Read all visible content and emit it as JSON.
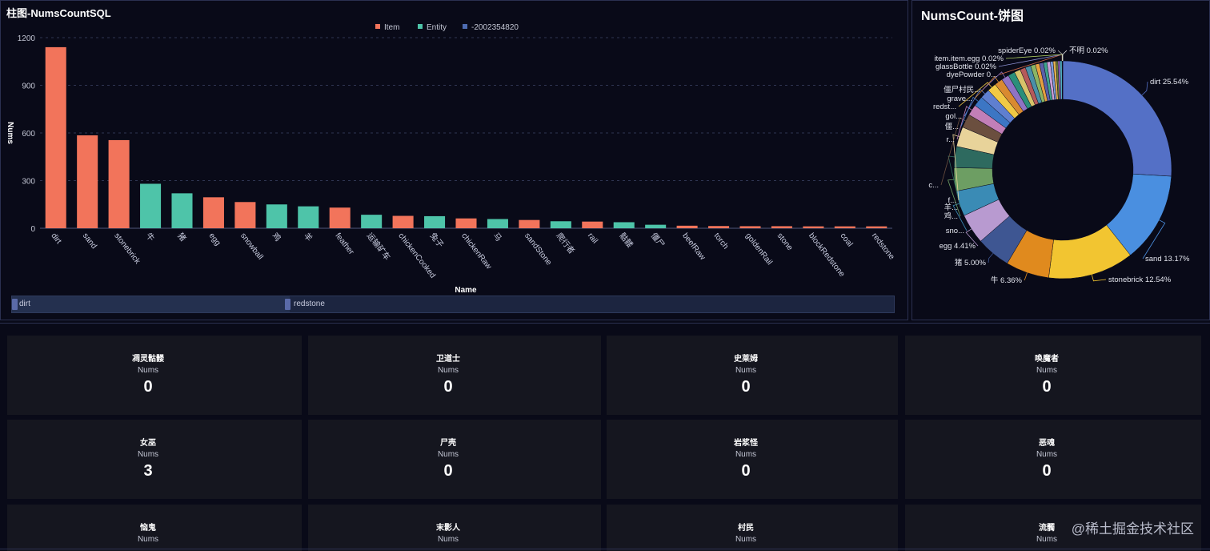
{
  "bar_panel": {
    "title": "柱图-NumsCountSQL"
  },
  "pie_panel": {
    "title": "NumsCount-饼图"
  },
  "colors": {
    "item": "#f2745b",
    "entity": "#4ec4a9",
    "other": "#4d6bb1"
  },
  "chart_data": [
    {
      "type": "bar",
      "title": "柱图-NumsCountSQL",
      "xlabel": "Name",
      "ylabel": "Nums",
      "ylim": [
        0,
        1200
      ],
      "yticks": [
        0,
        300,
        600,
        900,
        1200
      ],
      "grid": true,
      "legend": [
        "Item",
        "Entity",
        "-2002354820"
      ],
      "legend_placement": "top-center",
      "categories": [
        "dirt",
        "sand",
        "stonebrick",
        "牛",
        "猪",
        "egg",
        "snowball",
        "鸡",
        "羊",
        "feather",
        "运输矿车",
        "chickenCooked",
        "兔子",
        "chickenRaw",
        "马",
        "sandStone",
        "爬行者",
        "rail",
        "骷髅",
        "僵尸",
        "beefRaw",
        "torch",
        "goldenRail",
        "stone",
        "blockRedstone",
        "coal",
        "redstone"
      ],
      "series": [
        {
          "name": "Item",
          "values": [
            1140,
            585,
            555,
            null,
            null,
            195,
            165,
            null,
            null,
            130,
            null,
            78,
            null,
            62,
            null,
            52,
            null,
            42,
            null,
            null,
            16,
            14,
            13,
            13,
            12,
            12,
            12
          ]
        },
        {
          "name": "Entity",
          "values": [
            null,
            null,
            null,
            280,
            220,
            null,
            null,
            150,
            138,
            null,
            85,
            null,
            76,
            null,
            58,
            null,
            44,
            null,
            38,
            22,
            null,
            null,
            null,
            null,
            null,
            null,
            null
          ]
        }
      ]
    },
    {
      "type": "pie",
      "title": "NumsCount-饼图",
      "donut": true,
      "slices": [
        {
          "label": "dirt 25.54%",
          "value": 25.54,
          "color": "#5470c6"
        },
        {
          "label": "sand 13.17%",
          "value": 13.17,
          "color": "#4a8fe0"
        },
        {
          "label": "stonebrick 12.54%",
          "value": 12.54,
          "color": "#f2c531"
        },
        {
          "label": "牛 6.36%",
          "value": 6.36,
          "color": "#e08a1e"
        },
        {
          "label": "猪 5.00%",
          "value": 5.0,
          "color": "#3e5692"
        },
        {
          "label": "egg 4.41%",
          "value": 4.41,
          "color": "#b89ad0"
        },
        {
          "label": "sno...",
          "value": 3.7,
          "color": "#3a8bb5"
        },
        {
          "label": "鸡...",
          "value": 3.4,
          "color": "#6d9e63"
        },
        {
          "label": "羊...",
          "value": 3.1,
          "color": "#2e6a5f"
        },
        {
          "label": "f...",
          "value": 2.9,
          "color": "#e8d39a"
        },
        {
          "label": "c...",
          "value": 2.0,
          "color": "#6b4f3f"
        },
        {
          "label": "r...",
          "value": 1.6,
          "color": "#c27fb8"
        },
        {
          "label": "僵...",
          "value": 1.5,
          "color": "#3c76c4"
        },
        {
          "label": "gol...",
          "value": 1.4,
          "color": "#5f7fd0"
        },
        {
          "label": "redst...",
          "value": 1.3,
          "color": "#f1c945"
        },
        {
          "label": "grave...",
          "value": 1.2,
          "color": "#d98a30"
        },
        {
          "label": "僵尸村民...",
          "value": 1.1,
          "color": "#8f73c4"
        },
        {
          "label": "",
          "value": 1.0,
          "color": "#2b8f7a"
        },
        {
          "label": "",
          "value": 0.9,
          "color": "#d7c36a"
        },
        {
          "label": "",
          "value": 0.8,
          "color": "#b55a5a"
        },
        {
          "label": "",
          "value": 0.8,
          "color": "#4a90a8"
        },
        {
          "label": "",
          "value": 0.7,
          "color": "#8ab464"
        },
        {
          "label": "",
          "value": 0.6,
          "color": "#e6a040"
        },
        {
          "label": "",
          "value": 0.6,
          "color": "#5b5fa8"
        },
        {
          "label": "",
          "value": 0.5,
          "color": "#3fa38d"
        },
        {
          "label": "",
          "value": 0.5,
          "color": "#c9a0d8"
        },
        {
          "label": "",
          "value": 0.4,
          "color": "#7a9ad8"
        },
        {
          "label": "",
          "value": 0.4,
          "color": "#e0b050"
        },
        {
          "label": "",
          "value": 0.3,
          "color": "#6a7c3a"
        },
        {
          "label": "",
          "value": 0.3,
          "color": "#9a6acb"
        },
        {
          "label": "",
          "value": 0.3,
          "color": "#4fb0c0"
        },
        {
          "label": "dyePowder 0...",
          "value": 0.02,
          "color": "#d06a4a"
        },
        {
          "label": "glassBottle 0.02%",
          "value": 0.02,
          "color": "#8a8fd0"
        },
        {
          "label": "item.item.egg 0.02%",
          "value": 0.02,
          "color": "#b0d060"
        },
        {
          "label": "spiderEye 0.02%",
          "value": 0.02,
          "color": "#c0c0c0"
        },
        {
          "label": "不明 0.02%",
          "value": 0.02,
          "color": "#e6e6e6"
        }
      ]
    }
  ],
  "slider": {
    "start_label": "dirt",
    "end_label": "redstone"
  },
  "cards": [
    {
      "name": "凋灵骷髅",
      "label": "Nums",
      "value": "0"
    },
    {
      "name": "卫道士",
      "label": "Nums",
      "value": "0"
    },
    {
      "name": "史莱姆",
      "label": "Nums",
      "value": "0"
    },
    {
      "name": "唤魔者",
      "label": "Nums",
      "value": "0"
    },
    {
      "name": "女巫",
      "label": "Nums",
      "value": "3"
    },
    {
      "name": "尸壳",
      "label": "Nums",
      "value": "0"
    },
    {
      "name": "岩浆怪",
      "label": "Nums",
      "value": "0"
    },
    {
      "name": "恶魂",
      "label": "Nums",
      "value": "0"
    },
    {
      "name": "恼鬼",
      "label": "Nums",
      "value": ""
    },
    {
      "name": "末影人",
      "label": "Nums",
      "value": ""
    },
    {
      "name": "村民",
      "label": "Nums",
      "value": ""
    },
    {
      "name": "流髑",
      "label": "Nums",
      "value": ""
    }
  ],
  "watermark": "@稀土掘金技术社区"
}
